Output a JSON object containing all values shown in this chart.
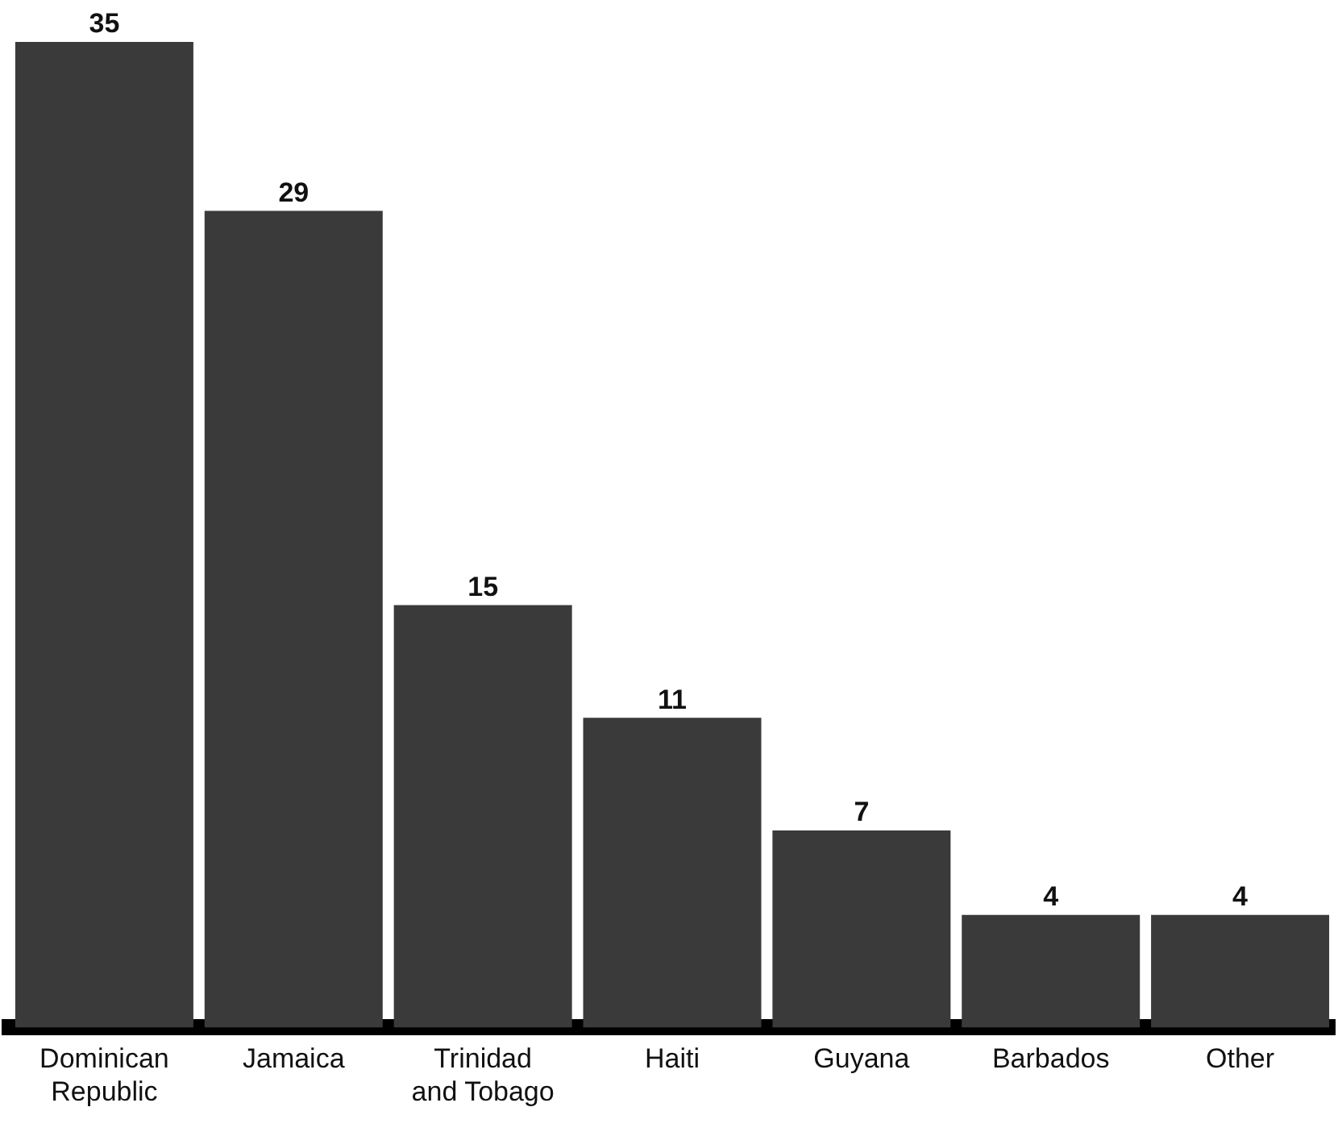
{
  "chart_data": {
    "type": "bar",
    "categories": [
      "Dominican Republic",
      "Jamaica",
      "Trinidad and Tobago",
      "Haiti",
      "Guyana",
      "Barbados",
      "Other"
    ],
    "values": [
      35,
      29,
      15,
      11,
      7,
      4,
      4
    ],
    "color": "#3a3a3a",
    "data_labels": true,
    "grid": false,
    "legend": false
  }
}
